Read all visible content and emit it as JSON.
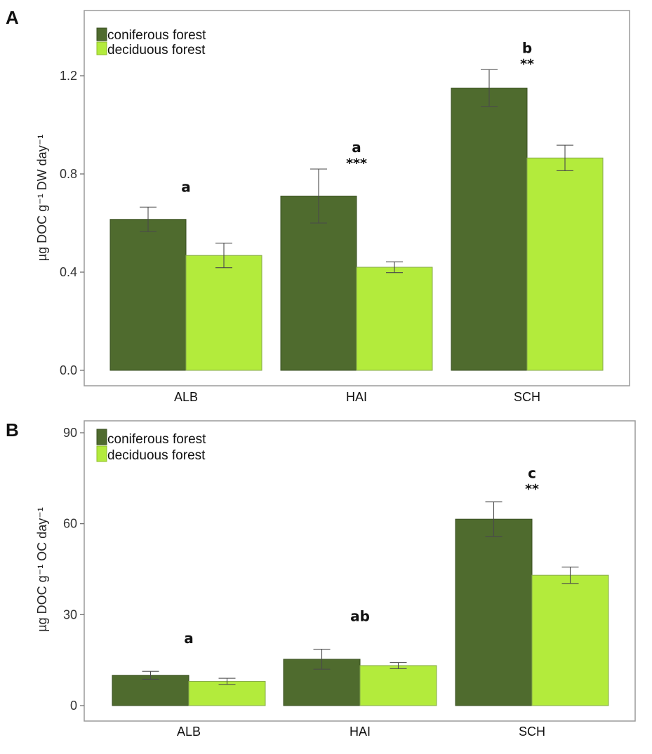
{
  "chart_data": [
    {
      "panel": "A",
      "type": "bar",
      "ylabel": "µg DOC g⁻¹ DW day⁻¹",
      "xlabel": "",
      "categories": [
        "ALB",
        "HAI",
        "SCH"
      ],
      "ylim": [
        0,
        1.4
      ],
      "yticks": [
        0.0,
        0.4,
        0.8,
        1.2
      ],
      "ytick_labels": [
        "0.0",
        "0.4",
        "0.8",
        "1.2"
      ],
      "series": [
        {
          "name": "coniferous forest",
          "color": "#4f6b2e",
          "values": [
            0.615,
            0.71,
            1.15
          ],
          "errors": [
            0.05,
            0.11,
            0.075
          ]
        },
        {
          "name": "deciduous forest",
          "color": "#b3eb3c",
          "values": [
            0.468,
            0.42,
            0.865
          ],
          "errors": [
            0.05,
            0.022,
            0.052
          ]
        }
      ],
      "annotations": [
        {
          "category": "ALB",
          "letter": "a",
          "stars": ""
        },
        {
          "category": "HAI",
          "letter": "a",
          "stars": "***"
        },
        {
          "category": "SCH",
          "letter": "b",
          "stars": "**"
        }
      ],
      "legend_position": "top-left"
    },
    {
      "panel": "B",
      "type": "bar",
      "ylabel": "µg DOC g⁻¹ OC day⁻¹",
      "xlabel": "",
      "categories": [
        "ALB",
        "HAI",
        "SCH"
      ],
      "ylim": [
        0,
        90
      ],
      "yticks": [
        0,
        30,
        60,
        90
      ],
      "ytick_labels": [
        "0",
        "30",
        "60",
        "90"
      ],
      "series": [
        {
          "name": "coniferous forest",
          "color": "#4f6b2e",
          "values": [
            10,
            15.3,
            61.5
          ],
          "errors": [
            1.3,
            3.3,
            5.7
          ]
        },
        {
          "name": "deciduous forest",
          "color": "#b3eb3c",
          "values": [
            8,
            13.2,
            43
          ],
          "errors": [
            1.0,
            1.0,
            2.7
          ]
        }
      ],
      "annotations": [
        {
          "category": "ALB",
          "letter": "a",
          "stars": ""
        },
        {
          "category": "HAI",
          "letter": "ab",
          "stars": ""
        },
        {
          "category": "SCH",
          "letter": "c",
          "stars": "**"
        }
      ],
      "legend_position": "top-left"
    }
  ]
}
